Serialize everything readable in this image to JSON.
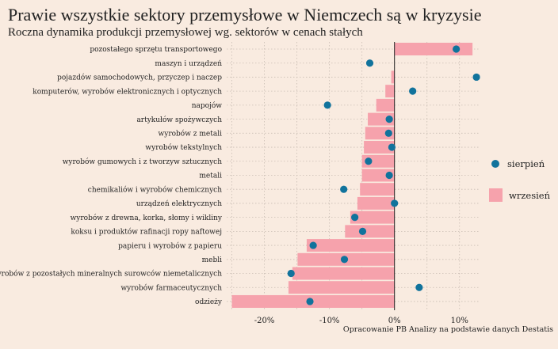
{
  "header": {
    "title": "Prawie wszystkie sektory przemysłowe w Niemczech są w kryzysie",
    "subtitle": "Roczna dynamika produkcji przemysłowej wg. sektorów w cenach stałych"
  },
  "caption": "Opracowanie PB Analizy na podstawie danych Destatis",
  "colors": {
    "background": "#f9ebe0",
    "bar": "#f6a2ac",
    "dot": "#11739c",
    "grid": "#c9bdb3",
    "zero_line": "#222222"
  },
  "chart_data": {
    "type": "bar",
    "orientation": "horizontal",
    "categories": [
      "pozostałego sprzętu transportowego",
      "maszyn i urządzeń",
      "pojazdów samochodowych, przyczep i naczep",
      "komputerów, wyrobów elektronicznych i optycznych",
      "napojów",
      "artykułów spożywczych",
      "wyrobów z metali",
      "wyrobów tekstylnych",
      "wyrobów gumowych i z tworzyw sztucznych",
      "metali",
      "chemikaliów i wyrobów chemicznych",
      "urządzeń elektrycznych",
      "wyrobów z drewna, korka, słomy i wikliny",
      "koksu i produktów rafinacji ropy naftowej",
      "papieru i wyrobów z papieru",
      "mebli",
      "wyrobów z pozostałych mineralnych surowców niemetalicznych",
      "wyrobów farmaceutycznych",
      "odzieży"
    ],
    "series": [
      {
        "name": "wrzesień",
        "kind": "bar",
        "values": [
          12.0,
          0.0,
          -0.5,
          -1.4,
          -2.8,
          -4.1,
          -4.5,
          -4.7,
          -5.0,
          -5.0,
          -5.3,
          -5.7,
          -6.8,
          -7.6,
          -13.5,
          -14.9,
          -15.7,
          -16.3,
          -25.0
        ]
      },
      {
        "name": "sierpień",
        "kind": "dot",
        "values": [
          9.5,
          -3.8,
          12.6,
          2.8,
          -10.3,
          -0.8,
          -0.9,
          -0.4,
          -4.0,
          -0.8,
          -7.8,
          0.0,
          -6.1,
          -4.9,
          -12.5,
          -7.7,
          -15.9,
          3.8,
          -13.0
        ]
      }
    ],
    "x_ticks": [
      -20,
      -10,
      0,
      10
    ],
    "x_tick_labels": [
      "-20%",
      "-10%",
      "0%",
      "10%"
    ],
    "xlim": [
      -25.8,
      13.2
    ],
    "grid": true,
    "legend_position": "right"
  }
}
